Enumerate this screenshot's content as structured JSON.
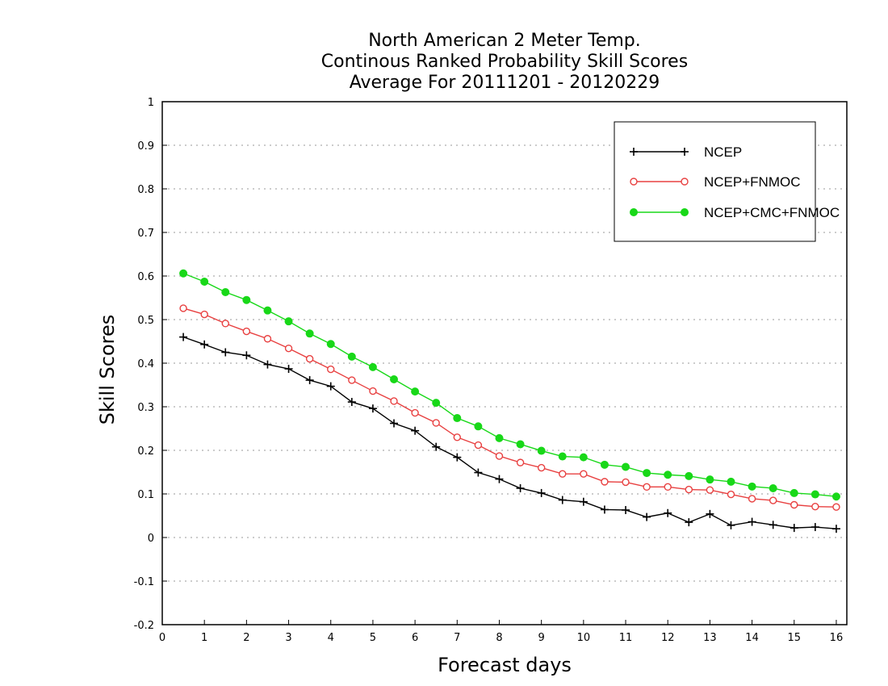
{
  "chart_data": {
    "type": "line",
    "title": [
      "North American 2 Meter Temp.",
      "Continous Ranked Probability Skill Scores",
      "Average For 20111201 - 20120229"
    ],
    "xlabel": "Forecast days",
    "ylabel": "Skill Scores",
    "xlim": [
      0,
      16.25
    ],
    "ylim": [
      -0.2,
      1
    ],
    "xticks": [
      "0",
      "1",
      "2",
      "3",
      "4",
      "5",
      "6",
      "7",
      "8",
      "9",
      "10",
      "11",
      "12",
      "13",
      "14",
      "15",
      "16"
    ],
    "yticks": [
      "1",
      "0.9",
      "0.8",
      "0.7",
      "0.6",
      "0.5",
      "0.4",
      "0.3",
      "0.2",
      "0.1",
      "0",
      "-0.1",
      "-0.2"
    ],
    "grid": "horizontal dotted",
    "legend_position": "top-right",
    "x": [
      0.5,
      1,
      1.5,
      2,
      2.5,
      3,
      3.5,
      4,
      4.5,
      5,
      5.5,
      6,
      6.5,
      7,
      7.5,
      8,
      8.5,
      9,
      9.5,
      10,
      10.5,
      11,
      11.5,
      12,
      12.5,
      13,
      13.5,
      14,
      14.5,
      15,
      15.5,
      16
    ],
    "series": [
      {
        "name": "NCEP",
        "color": "#000000",
        "marker": "plus",
        "values": [
          0.46,
          0.443,
          0.425,
          0.418,
          0.397,
          0.387,
          0.361,
          0.347,
          0.311,
          0.296,
          0.262,
          0.245,
          0.208,
          0.184,
          0.149,
          0.134,
          0.113,
          0.102,
          0.086,
          0.082,
          0.064,
          0.063,
          0.047,
          0.056,
          0.035,
          0.054,
          0.028,
          0.036,
          0.029,
          0.022,
          0.024,
          0.02
        ]
      },
      {
        "name": "NCEP+FNMOC",
        "color": "#e84040",
        "marker": "open-circle",
        "values": [
          0.526,
          0.512,
          0.491,
          0.473,
          0.456,
          0.434,
          0.41,
          0.386,
          0.361,
          0.336,
          0.313,
          0.286,
          0.263,
          0.23,
          0.212,
          0.187,
          0.172,
          0.16,
          0.146,
          0.146,
          0.128,
          0.127,
          0.116,
          0.116,
          0.11,
          0.109,
          0.099,
          0.089,
          0.085,
          0.075,
          0.071,
          0.07
        ]
      },
      {
        "name": "NCEP+CMC+FNMOC",
        "color": "#18d818",
        "marker": "filled-circle",
        "values": [
          0.606,
          0.587,
          0.563,
          0.545,
          0.521,
          0.496,
          0.468,
          0.444,
          0.415,
          0.391,
          0.363,
          0.335,
          0.309,
          0.274,
          0.255,
          0.228,
          0.214,
          0.199,
          0.186,
          0.184,
          0.167,
          0.162,
          0.148,
          0.144,
          0.141,
          0.133,
          0.128,
          0.117,
          0.113,
          0.102,
          0.099,
          0.094
        ]
      }
    ]
  }
}
